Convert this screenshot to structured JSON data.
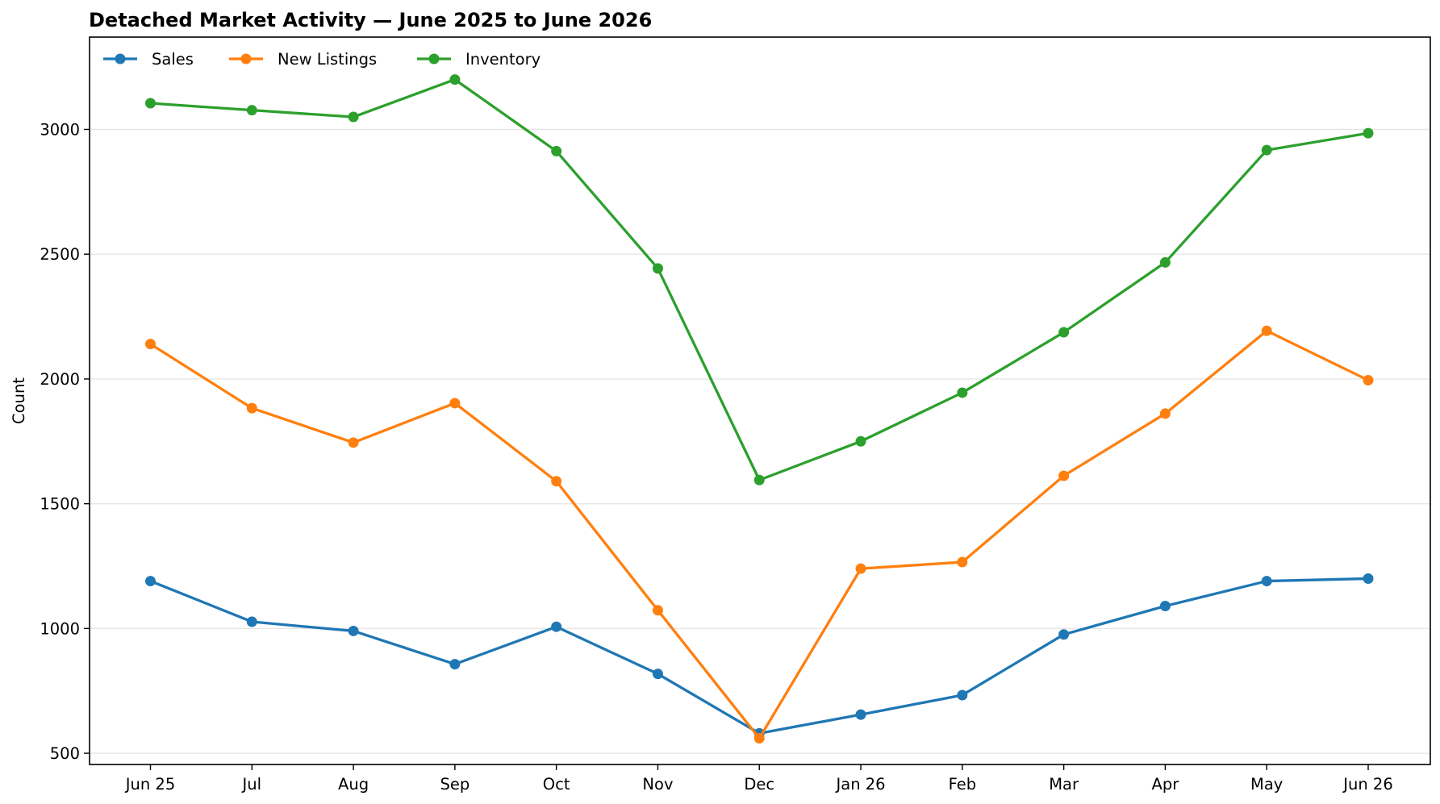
{
  "chart_data": {
    "type": "line",
    "title": "Detached Market Activity — June 2025 to June 2026",
    "xlabel": "",
    "ylabel": "Count",
    "categories": [
      "Jun 25",
      "Jul",
      "Aug",
      "Sep",
      "Oct",
      "Nov",
      "Dec",
      "Jan 26",
      "Feb",
      "Mar",
      "Apr",
      "May",
      "Jun 26"
    ],
    "ylim": [
      455,
      3370
    ],
    "yticks": [
      500,
      1000,
      1500,
      2000,
      2500,
      3000
    ],
    "grid": "horizontal",
    "legend_position": "top-left",
    "series": [
      {
        "name": "Sales",
        "color": "#1f77b4",
        "values": [
          1190,
          1027,
          990,
          857,
          1007,
          818,
          580,
          655,
          733,
          976,
          1090,
          1190,
          1200
        ]
      },
      {
        "name": "New Listings",
        "color": "#ff7f0e",
        "values": [
          2140,
          1883,
          1745,
          1903,
          1590,
          1073,
          560,
          1240,
          1266,
          1612,
          1861,
          2193,
          1995
        ]
      },
      {
        "name": "Inventory",
        "color": "#2ca02c",
        "values": [
          3105,
          3077,
          3050,
          3200,
          2913,
          2443,
          1595,
          1750,
          1945,
          2187,
          2467,
          2917,
          2985
        ]
      }
    ]
  }
}
